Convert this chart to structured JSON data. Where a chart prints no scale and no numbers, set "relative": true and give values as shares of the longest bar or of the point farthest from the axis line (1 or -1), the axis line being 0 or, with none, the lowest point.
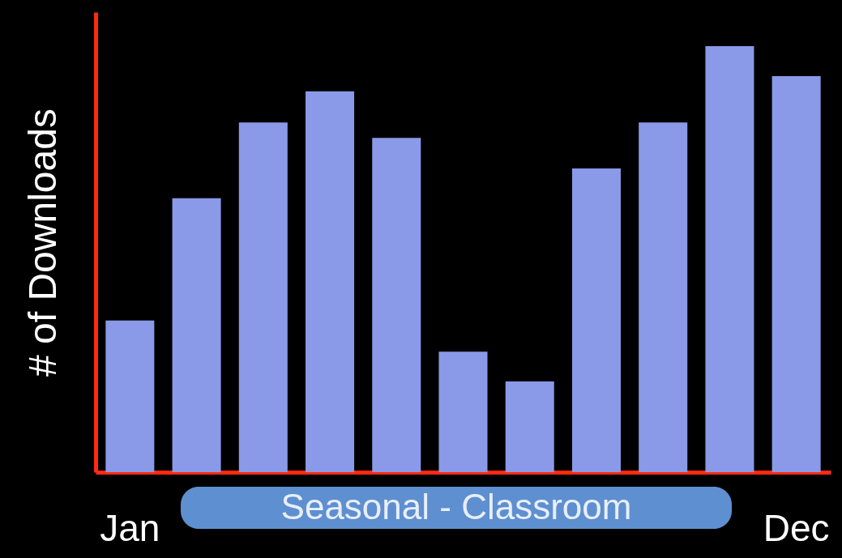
{
  "chart_data": {
    "type": "bar",
    "ylabel": "# of Downloads",
    "relative": true,
    "categories": [
      "Jan",
      null,
      null,
      null,
      null,
      null,
      null,
      null,
      null,
      null,
      "Dec"
    ],
    "values": [
      0.356,
      0.643,
      0.821,
      0.894,
      0.785,
      0.283,
      0.213,
      0.713,
      0.821,
      1,
      0.93
    ],
    "color": "#8a9ae8",
    "annotations": [
      "Seasonal - Classroom"
    ]
  }
}
